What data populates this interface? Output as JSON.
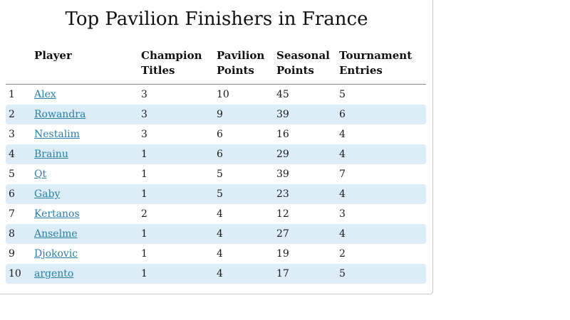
{
  "title": "Top Pavilion Finishers in France",
  "columns": {
    "rank": "",
    "player": "Player",
    "champion_titles": "Champion Titles",
    "pavilion_points": "Pavilion Points",
    "seasonal_points": "Seasonal Points",
    "tournament_entries": "Tournament Entries"
  },
  "rows": [
    {
      "rank": "1",
      "player": "Alex",
      "champion_titles": "3",
      "pavilion_points": "10",
      "seasonal_points": "45",
      "tournament_entries": "5"
    },
    {
      "rank": "2",
      "player": "Rowandra",
      "champion_titles": "3",
      "pavilion_points": "9",
      "seasonal_points": "39",
      "tournament_entries": "6"
    },
    {
      "rank": "3",
      "player": "Nestalim",
      "champion_titles": "3",
      "pavilion_points": "6",
      "seasonal_points": "16",
      "tournament_entries": "4"
    },
    {
      "rank": "4",
      "player": "Brainu",
      "champion_titles": "1",
      "pavilion_points": "6",
      "seasonal_points": "29",
      "tournament_entries": "4"
    },
    {
      "rank": "5",
      "player": "Qt",
      "champion_titles": "1",
      "pavilion_points": "5",
      "seasonal_points": "39",
      "tournament_entries": "7"
    },
    {
      "rank": "6",
      "player": "Gaby",
      "champion_titles": "1",
      "pavilion_points": "5",
      "seasonal_points": "23",
      "tournament_entries": "4"
    },
    {
      "rank": "7",
      "player": "Kertanos",
      "champion_titles": "2",
      "pavilion_points": "4",
      "seasonal_points": "12",
      "tournament_entries": "3"
    },
    {
      "rank": "8",
      "player": "Anselme",
      "champion_titles": "1",
      "pavilion_points": "4",
      "seasonal_points": "27",
      "tournament_entries": "4"
    },
    {
      "rank": "9",
      "player": "Djokovic",
      "champion_titles": "1",
      "pavilion_points": "4",
      "seasonal_points": "19",
      "tournament_entries": "2"
    },
    {
      "rank": "10",
      "player": "argento",
      "champion_titles": "1",
      "pavilion_points": "4",
      "seasonal_points": "17",
      "tournament_entries": "5"
    }
  ],
  "colors": {
    "row_alt_background": "#dcedf8",
    "link": "#2a7fa6"
  }
}
